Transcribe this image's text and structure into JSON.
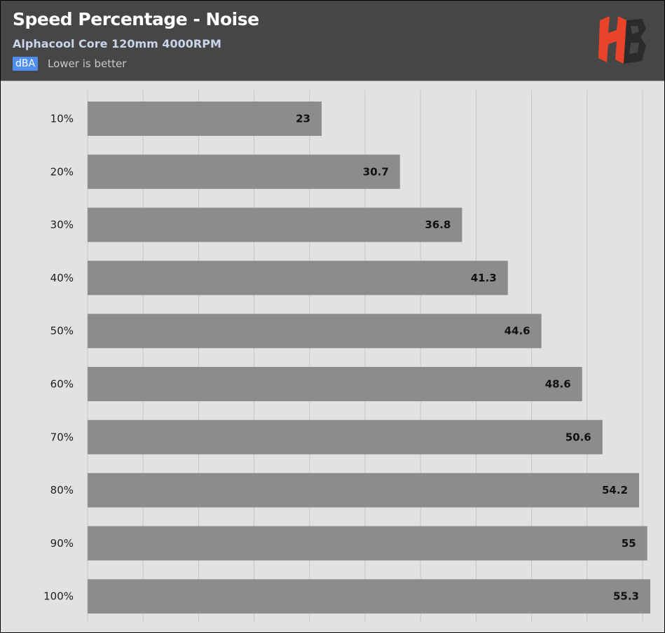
{
  "header": {
    "title": "Speed Percentage - Noise",
    "subtitle": "Alphacool Core 120mm 4000RPM",
    "unit_badge": "dBA",
    "note": "Lower is better",
    "logo": "hb-logo"
  },
  "colors": {
    "header_bg": "#464646",
    "plot_bg": "#e2e2e2",
    "bar": "#8c8c8c",
    "badge": "#4e8ff0",
    "logo_red": "#e9442a"
  },
  "chart_data": {
    "type": "bar",
    "orientation": "horizontal",
    "title": "Speed Percentage - Noise",
    "subtitle": "Alphacool Core 120mm 4000RPM",
    "unit": "dBA",
    "categories": [
      "10%",
      "20%",
      "30%",
      "40%",
      "50%",
      "60%",
      "70%",
      "80%",
      "90%",
      "100%"
    ],
    "values": [
      23,
      30.7,
      36.8,
      41.3,
      44.6,
      48.6,
      50.6,
      54.2,
      55,
      55.3
    ],
    "value_labels": [
      "23",
      "30.7",
      "36.8",
      "41.3",
      "44.6",
      "48.6",
      "50.6",
      "54.2",
      "55",
      "55.3"
    ],
    "xlim": [
      0,
      55.3
    ],
    "grid": true,
    "legend": "none"
  }
}
